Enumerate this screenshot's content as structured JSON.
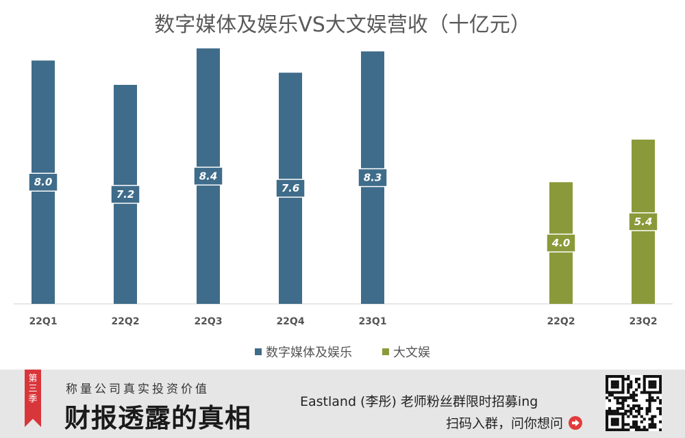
{
  "chart_data": {
    "type": "bar",
    "title": "数字媒体及娱乐VS大文娱营收（十亿元）",
    "categories": [
      "22Q1",
      "22Q2",
      "22Q3",
      "22Q4",
      "23Q1",
      "22Q2",
      "23Q2"
    ],
    "series": [
      {
        "name": "数字媒体及娱乐",
        "color": "#3f6c8a",
        "values": [
          8.0,
          7.2,
          8.4,
          7.6,
          8.3,
          null,
          null
        ],
        "labels": [
          "8.0",
          "7.2",
          "8.4",
          "7.6",
          "8.3",
          "",
          ""
        ]
      },
      {
        "name": "大文娱",
        "color": "#8a9a3a",
        "values": [
          null,
          null,
          null,
          null,
          null,
          4.0,
          5.4
        ],
        "labels": [
          "",
          "",
          "",
          "",
          "",
          "4.0",
          "5.4"
        ]
      }
    ],
    "xlabel": "",
    "ylabel": "",
    "ylim": [
      0,
      9
    ],
    "grid": false,
    "legend_position": "bottom"
  },
  "footer": {
    "season_badge": [
      "第",
      "三",
      "季"
    ],
    "subtitle": "称量公司真实投资价值",
    "title": "财报透露的真相",
    "promo": "Eastland (李彤) 老师粉丝群限时招募ing",
    "cta": "扫码入群，问你想问",
    "cta_icon": "arrow-right-circle-icon",
    "badge_color": "#d9363b"
  }
}
